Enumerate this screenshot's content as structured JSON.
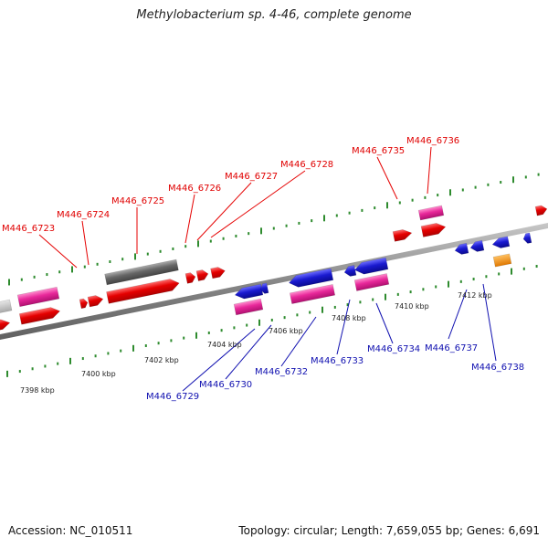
{
  "title": "Methylobacterium sp. 4-46, complete genome",
  "footer": {
    "accession": "Accession: NC_010511",
    "topology": "Topology: circular; Length: 7,659,055 bp; Genes: 6,691"
  },
  "colors": {
    "forward": "#e50000",
    "reverse": "#1a1ad0",
    "rna_pink": "#e8289a",
    "pseudo_grey": "#666666",
    "orange": "#f08a10",
    "backbone": "#8a8a8a",
    "ticks": "#2e8b2e"
  },
  "scale": {
    "ticks": [
      "7398 kbp",
      "7400 kbp",
      "7402 kbp",
      "7404 kbp",
      "7406 kbp",
      "7408 kbp",
      "7410 kbp",
      "7412 kbp"
    ]
  },
  "labels_top": [
    "M446_6723",
    "M446_6724",
    "M446_6725",
    "M446_6726",
    "M446_6727",
    "M446_6728",
    "M446_6735",
    "M446_6736"
  ],
  "labels_bottom": [
    "M446_6729",
    "M446_6730",
    "M446_6732",
    "M446_6733",
    "M446_6734",
    "M446_6737",
    "M446_6738"
  ]
}
